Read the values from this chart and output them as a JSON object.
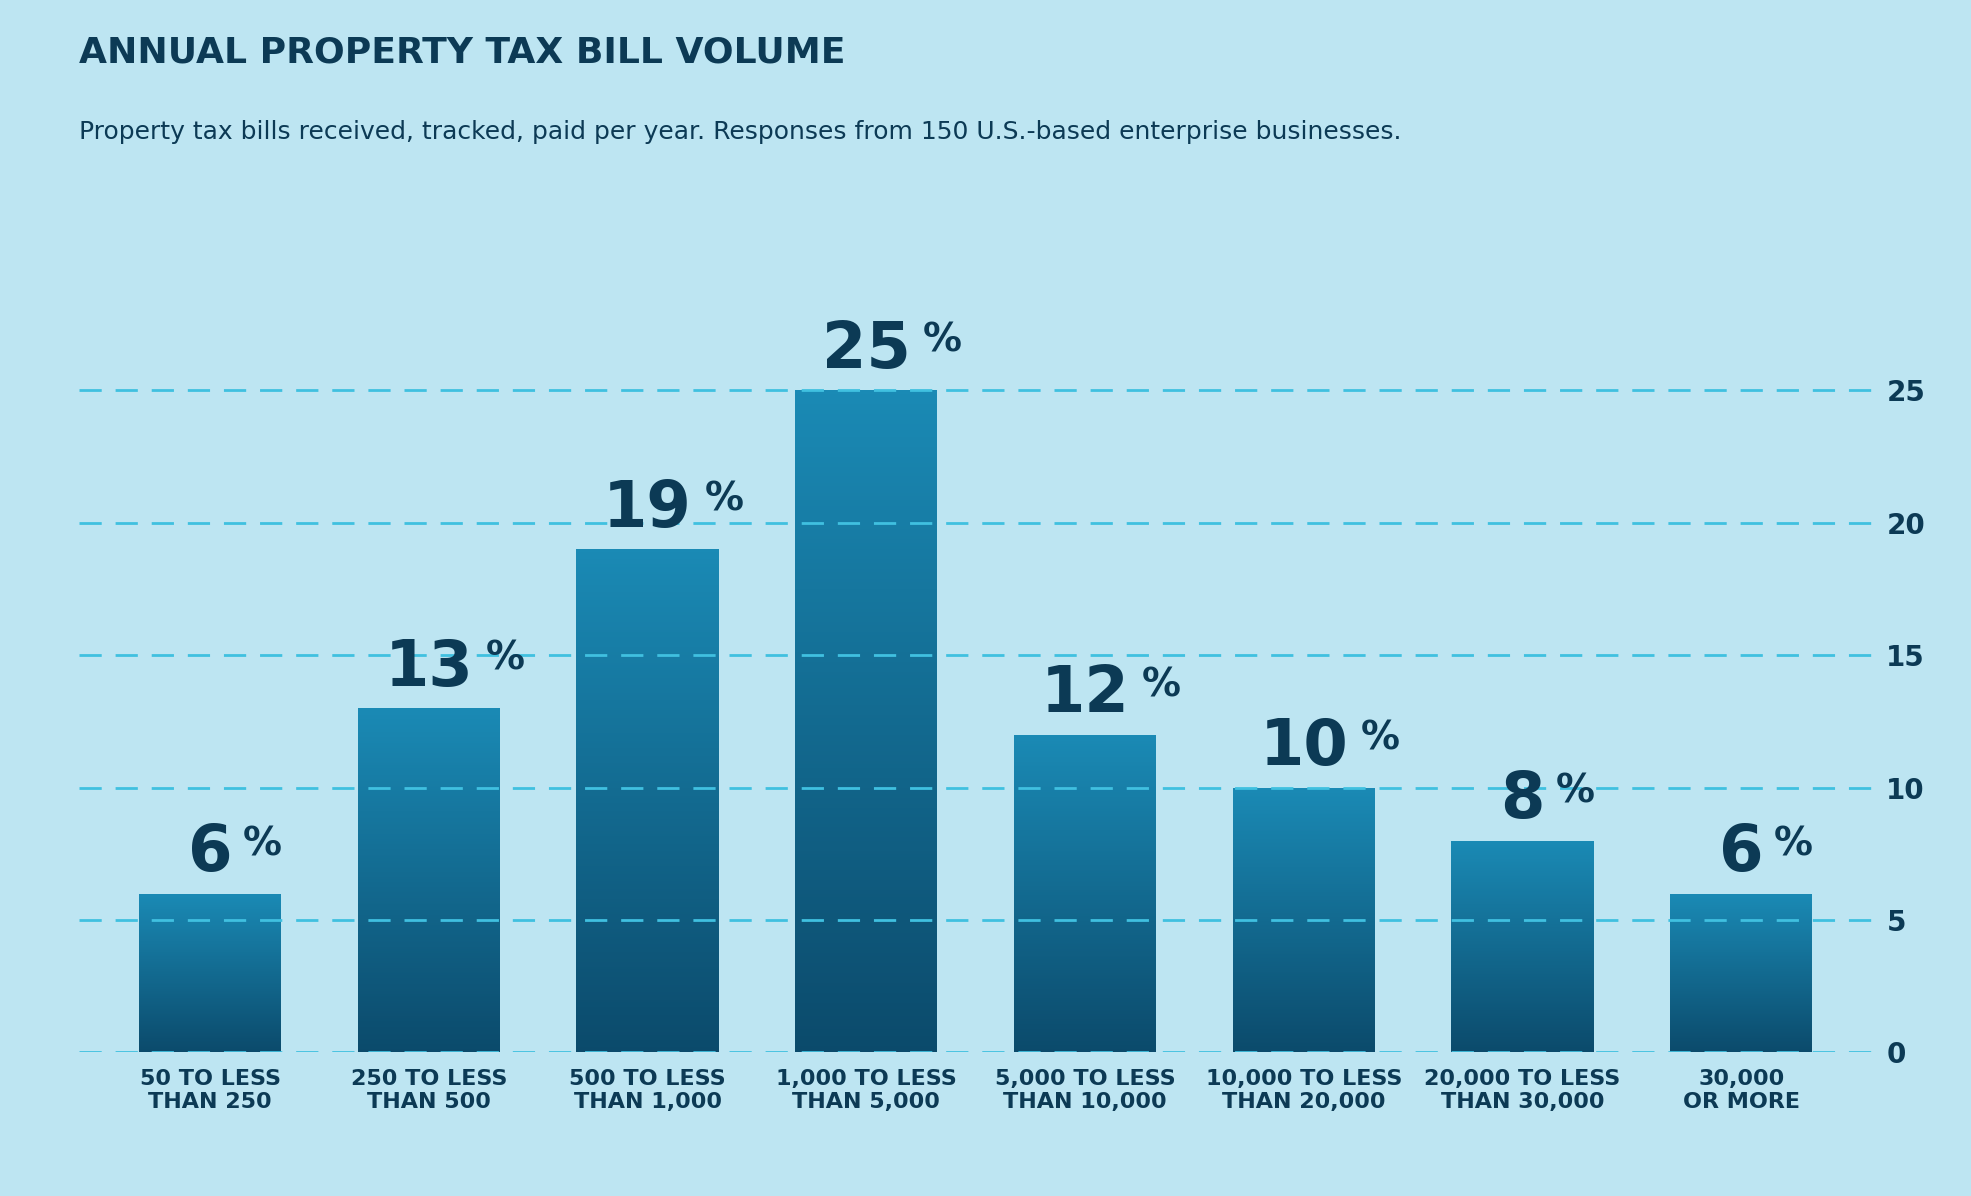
{
  "title": "ANNUAL PROPERTY TAX BILL VOLUME",
  "subtitle": "Property tax bills received, tracked, paid per year. Responses from 150 U.S.-based enterprise businesses.",
  "categories": [
    "50 TO LESS\nTHAN 250",
    "250 TO LESS\nTHAN 500",
    "500 TO LESS\nTHAN 1,000",
    "1,000 TO LESS\nTHAN 5,000",
    "5,000 TO LESS\nTHAN 10,000",
    "10,000 TO LESS\nTHAN 20,000",
    "20,000 TO LESS\nTHAN 30,000",
    "30,000\nOR MORE"
  ],
  "values": [
    6,
    13,
    19,
    25,
    12,
    10,
    8,
    6
  ],
  "bar_color_top": "#1a8ab5",
  "bar_color_bottom": "#0b4a6b",
  "background_color": "#bde5f2",
  "title_color": "#0c3a55",
  "subtitle_color": "#0c3a55",
  "axis_color": "#0c3a55",
  "grid_color": "#40c0e0",
  "label_color": "#0c3a55",
  "yticks": [
    0,
    5,
    10,
    15,
    20,
    25
  ],
  "ylim": [
    0,
    28
  ],
  "title_fontsize": 26,
  "subtitle_fontsize": 18,
  "bar_label_fontsize_num": 46,
  "bar_label_fontsize_pct": 28,
  "tick_fontsize": 20,
  "xtick_fontsize": 16,
  "bar_width": 0.65
}
